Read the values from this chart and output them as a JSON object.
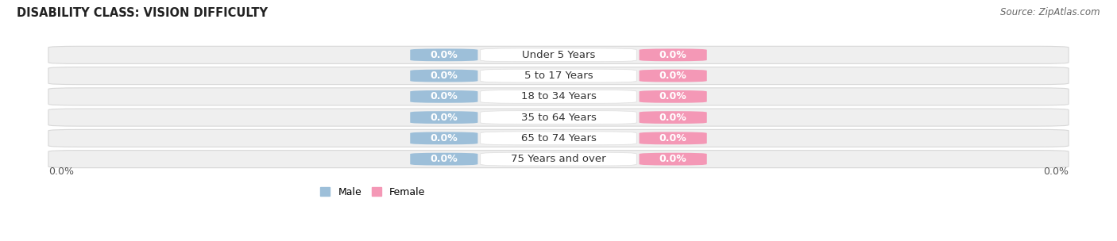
{
  "title": "DISABILITY CLASS: VISION DIFFICULTY",
  "source": "Source: ZipAtlas.com",
  "categories": [
    "Under 5 Years",
    "5 to 17 Years",
    "18 to 34 Years",
    "35 to 64 Years",
    "65 to 74 Years",
    "75 Years and over"
  ],
  "male_values": [
    0.0,
    0.0,
    0.0,
    0.0,
    0.0,
    0.0
  ],
  "female_values": [
    0.0,
    0.0,
    0.0,
    0.0,
    0.0,
    0.0
  ],
  "male_color": "#9dbfd9",
  "female_color": "#f498b6",
  "male_label": "Male",
  "female_label": "Female",
  "row_bg_color": "#efefef",
  "row_border_color": "#d8d8d8",
  "title_fontsize": 10.5,
  "cat_fontsize": 9.5,
  "val_fontsize": 9,
  "tick_fontsize": 9,
  "source_fontsize": 8.5,
  "legend_fontsize": 9,
  "x_left_label": "0.0%",
  "x_right_label": "0.0%"
}
